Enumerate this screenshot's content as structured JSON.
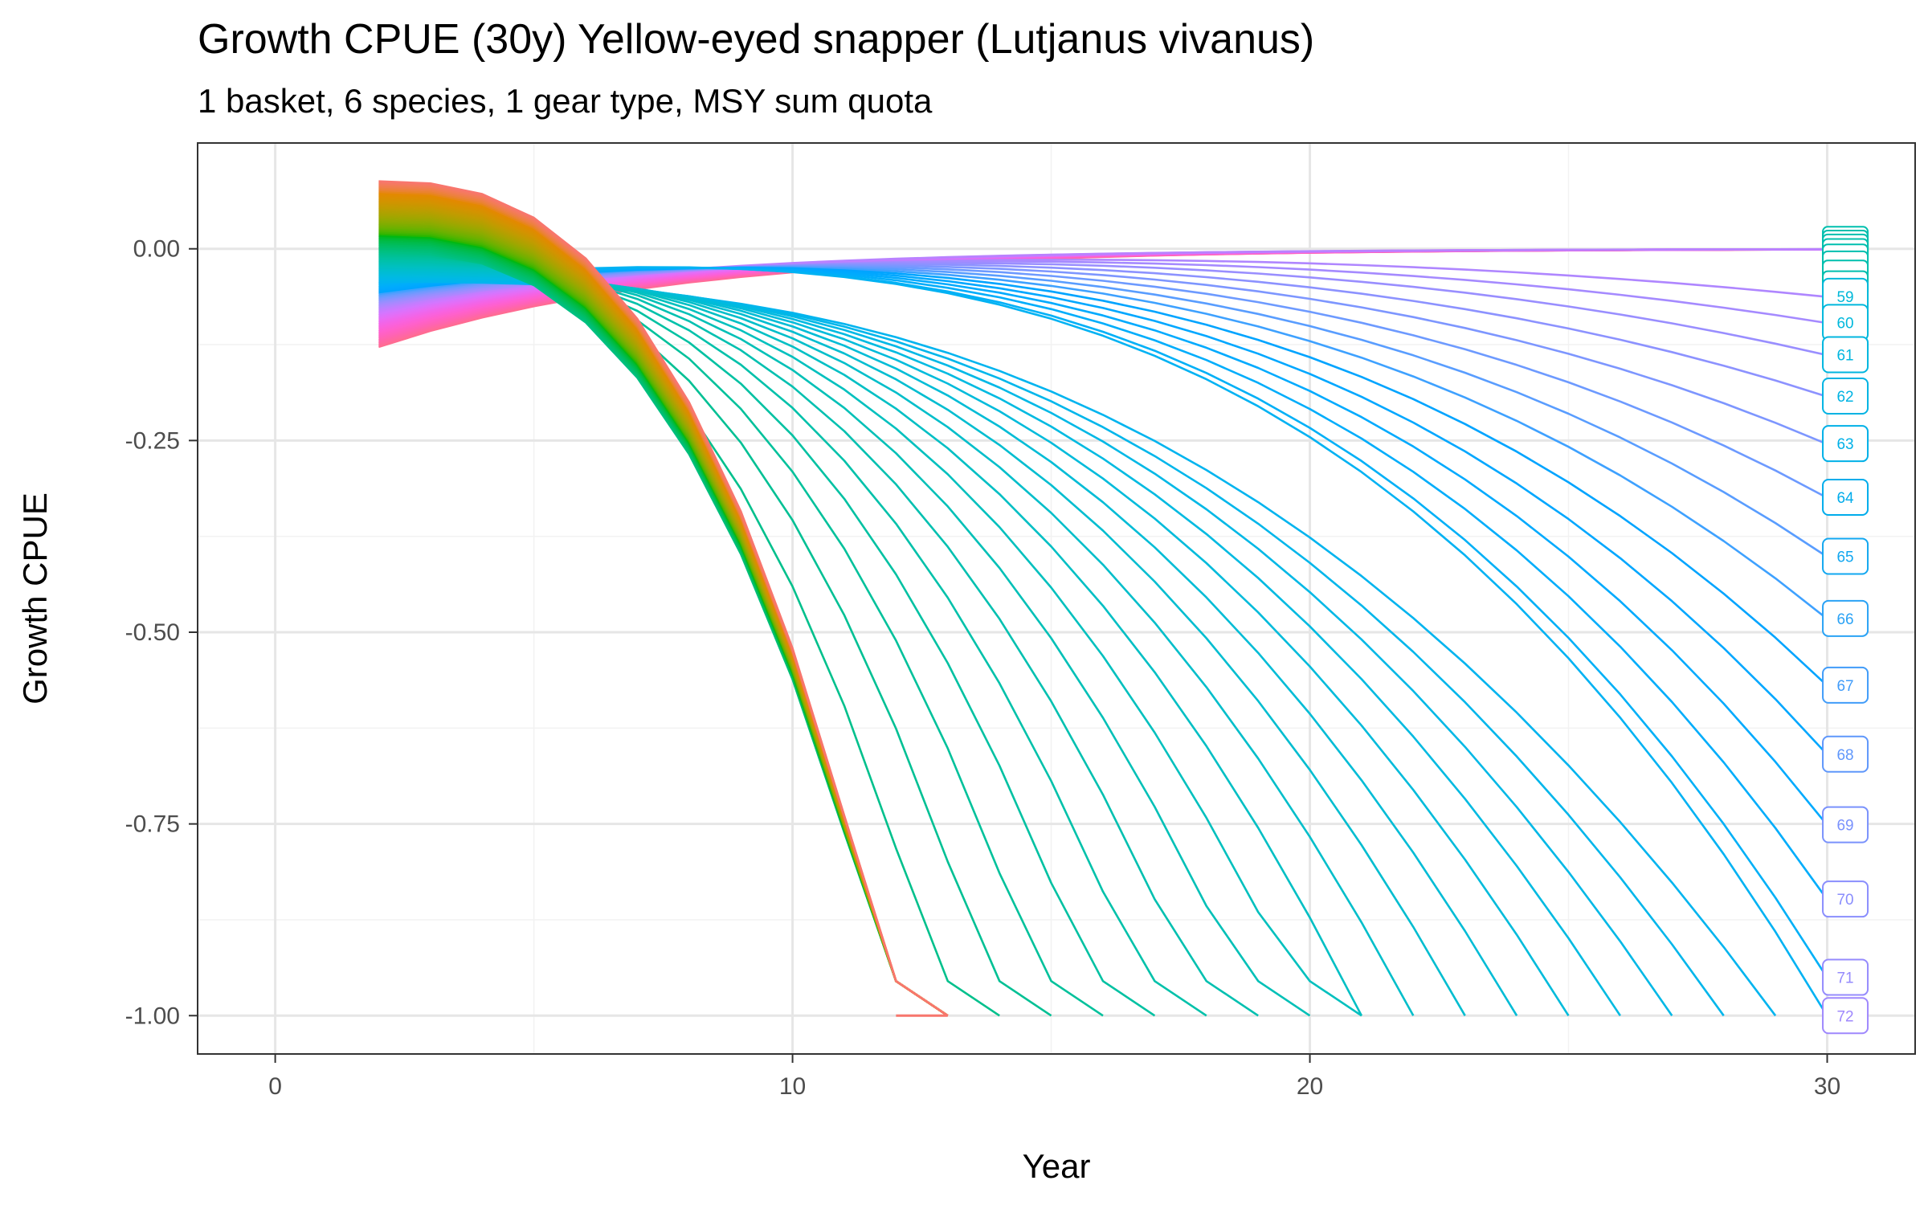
{
  "chart_data": {
    "type": "line",
    "title": "Growth CPUE (30y) Yellow-eyed snapper (Lutjanus vivanus)",
    "subtitle": "1 basket, 6 species, 1 gear type, MSY sum quota",
    "xlabel": "Year",
    "ylabel": "Growth CPUE",
    "xlim": [
      -1.5,
      31.7
    ],
    "ylim": [
      -1.05,
      0.138
    ],
    "x_ticks": [
      0,
      10,
      20,
      30
    ],
    "x_tick_labels": [
      "0",
      "10",
      "20",
      "30"
    ],
    "y_ticks": [
      0.0,
      -0.25,
      -0.5,
      -0.75,
      -1.0
    ],
    "y_tick_labels": [
      "0.00",
      "-0.25",
      "-0.50",
      "-0.75",
      "-1.00"
    ],
    "grid": true,
    "legend": "none",
    "series_count": 95,
    "series_start_year": 2,
    "series_end_year": 30,
    "series_start_range": [
      0.088,
      -0.128
    ],
    "collapse_floor": -1.0,
    "end_labels": [
      {
        "label": "59",
        "y": -0.062,
        "color": "#00b8d9"
      },
      {
        "label": "60",
        "y": -0.096,
        "color": "#00b8dc"
      },
      {
        "label": "61",
        "y": -0.138,
        "color": "#00b6df"
      },
      {
        "label": "62",
        "y": -0.192,
        "color": "#00b3e3"
      },
      {
        "label": "63",
        "y": -0.254,
        "color": "#00b0e7"
      },
      {
        "label": "64",
        "y": -0.324,
        "color": "#00aceb"
      },
      {
        "label": "65",
        "y": -0.401,
        "color": "#12a7f0"
      },
      {
        "label": "66",
        "y": -0.482,
        "color": "#2aa2f5"
      },
      {
        "label": "67",
        "y": -0.569,
        "color": "#419cf9"
      },
      {
        "label": "68",
        "y": -0.659,
        "color": "#5f97fb"
      },
      {
        "label": "69",
        "y": -0.751,
        "color": "#7a92fc"
      },
      {
        "label": "70",
        "y": -0.848,
        "color": "#8a8efd"
      },
      {
        "label": "71",
        "y": -0.95,
        "color": "#958bfd"
      },
      {
        "label": "72",
        "y": -1.0,
        "color": "#9f88fd"
      }
    ]
  }
}
